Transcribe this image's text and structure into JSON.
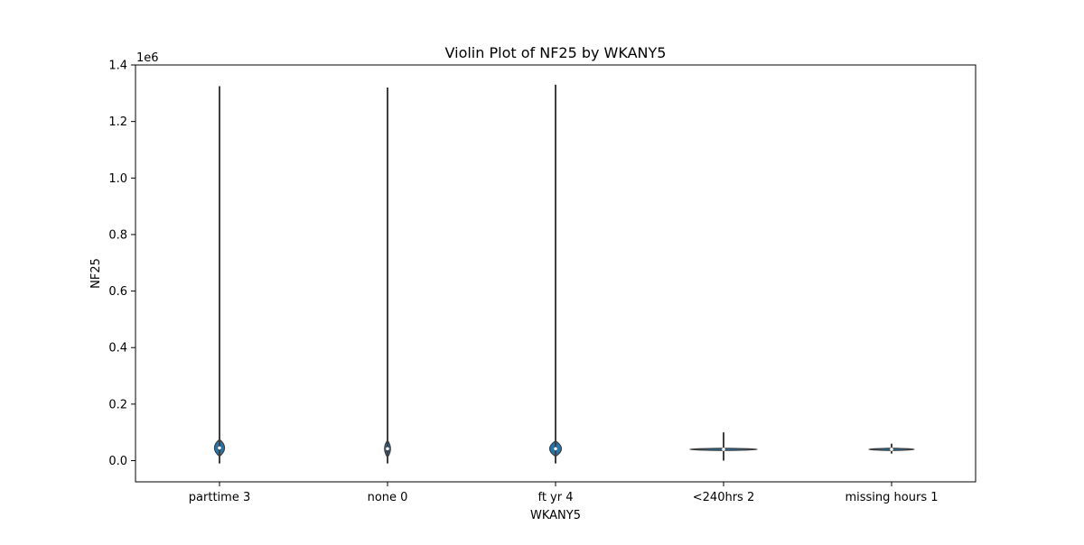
{
  "chart_data": {
    "type": "violin",
    "title": "Violin Plot of NF25 by WKANY5",
    "xlabel": "WKANY5",
    "ylabel": "NF25",
    "y_offset_text": "1e6",
    "ylim": [
      -75000,
      1400000
    ],
    "yticks": [
      0.0,
      0.2,
      0.4,
      0.6,
      0.8,
      1.0,
      1.2,
      1.4
    ],
    "ytick_labels": [
      "0.0",
      "0.2",
      "0.4",
      "0.6",
      "0.8",
      "1.0",
      "1.2",
      "1.4"
    ],
    "ytick_scale": 1000000,
    "categories": [
      "parttime 3",
      "none 0",
      "ft yr 4",
      "<240hrs 2",
      "missing hours 1"
    ],
    "violins": [
      {
        "category": "parttime 3",
        "min": -10000,
        "max": 1325000,
        "center": 45000,
        "body_low": 15000,
        "body_high": 75000,
        "half_width": 0.06,
        "q1": 38000,
        "q3": 50000
      },
      {
        "category": "none 0",
        "min": -10000,
        "max": 1320000,
        "center": 42000,
        "body_low": 12000,
        "body_high": 72000,
        "half_width": 0.035,
        "q1": 30000,
        "q3": 52000
      },
      {
        "category": "ft yr 4",
        "min": -10000,
        "max": 1330000,
        "center": 42000,
        "body_low": 15000,
        "body_high": 70000,
        "half_width": 0.07,
        "q1": 36000,
        "q3": 48000
      },
      {
        "category": "<240hrs 2",
        "min": 0,
        "max": 100000,
        "center": 40000,
        "body_low": 36000,
        "body_high": 44000,
        "half_width": 0.4,
        "q1": 38000,
        "q3": 42000
      },
      {
        "category": "missing hours 1",
        "min": 25000,
        "max": 60000,
        "center": 40000,
        "body_low": 36000,
        "body_high": 44000,
        "half_width": 0.27,
        "q1": 38000,
        "q3": 44000
      }
    ],
    "violin_fill": "#1f77b4",
    "line_color": "#3f3f3f",
    "grid": false,
    "legend": "none"
  }
}
